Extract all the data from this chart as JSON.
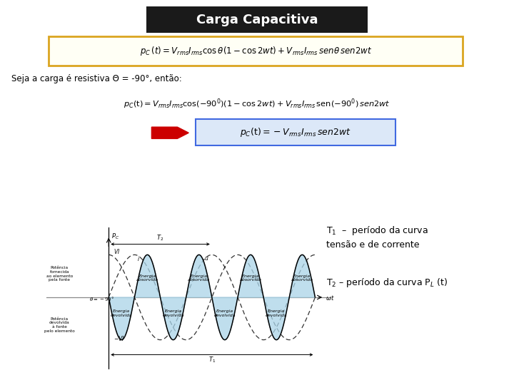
{
  "title": "Carga Capacitiva",
  "title_bg": "#1a1a1a",
  "title_color": "#ffffff",
  "eq1_box_color": "#DAA520",
  "eq1_bg": "#fffff5",
  "eq1_text": "$p_C\\,(t)= V_{rms}I_{rms}\\cos\\theta(1 - \\cos 2wt) + V_{rms}I_{rms}\\,sen\\theta\\,sen2wt$",
  "text_line1": "Seja a carga é resistiva Θ = -90°, então:",
  "eq2_text": "$p_C(\\mathrm{t})= V_{rms}I_{rms}\\cos(-90^0)(1 - \\cos 2wt) + V_{rms}I_{rms}\\,\\mathrm{sen}(-90^0)\\,sen2wt$",
  "eq3_box_color": "#4169e1",
  "eq3_bg": "#dce8f8",
  "eq3_text": "$p_C(\\mathrm{t})= -V_{rms}I_{rms}\\,sen2wt$",
  "arrow_color": "#cc0000",
  "bg_color": "#ffffff",
  "graph_fill_color": "#aad4e8",
  "graph_fill_alpha": 0.75,
  "note1_text": "T$_1$  –  período da curva\ntensão e de corrente",
  "note2_text": "T$_2$ – período da curva P$_L$ (t)"
}
